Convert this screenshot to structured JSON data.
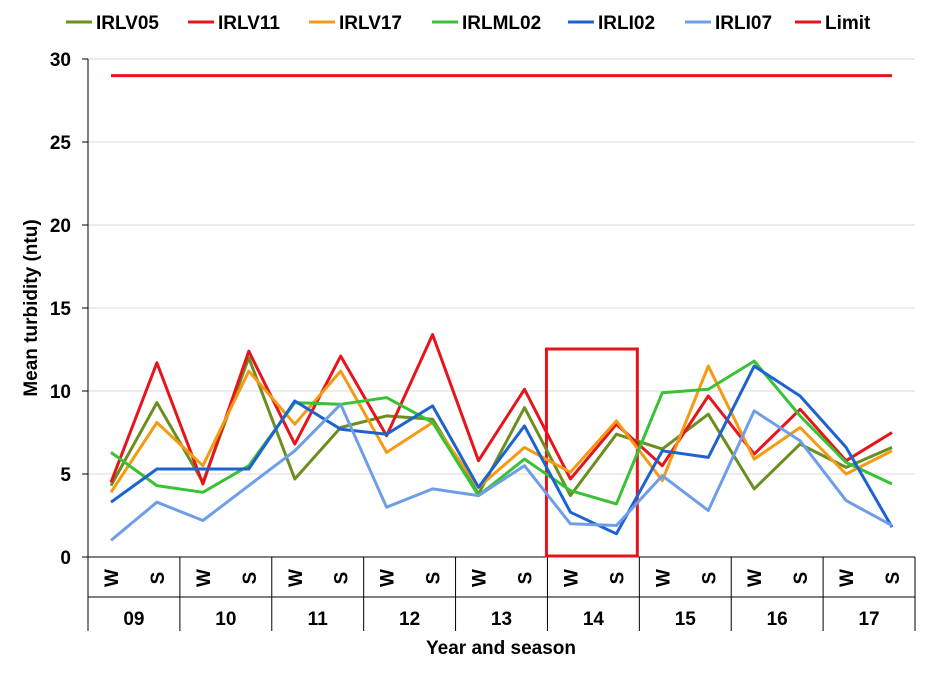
{
  "chart_data": {
    "type": "line",
    "ylabel": "Mean turbidity (ntu)",
    "xlabel": "Year and season",
    "ylim": [
      0,
      30
    ],
    "yticks": [
      "0",
      "5",
      "10",
      "15",
      "20",
      "25",
      "30"
    ],
    "years": [
      "09",
      "10",
      "11",
      "12",
      "13",
      "14",
      "15",
      "16",
      "17"
    ],
    "seasons": [
      "W",
      "S"
    ],
    "grid": "horizontal",
    "legend_position": "top",
    "highlight": {
      "year": "14",
      "color": "#e8141b"
    },
    "series": [
      {
        "name": "IRLV05",
        "color": "#6b8e1e",
        "values": [
          4.3,
          9.3,
          4.5,
          12.0,
          4.7,
          7.8,
          8.5,
          8.3,
          3.8,
          9.0,
          3.7,
          7.4,
          6.5,
          8.6,
          4.1,
          6.8,
          5.4,
          6.6
        ]
      },
      {
        "name": "IRLV11",
        "color": "#e8141b",
        "values": [
          4.5,
          11.7,
          4.4,
          12.4,
          6.8,
          12.1,
          7.3,
          13.4,
          5.8,
          10.1,
          4.7,
          8.0,
          5.5,
          9.7,
          6.2,
          8.9,
          5.8,
          7.5
        ]
      },
      {
        "name": "IRLV17",
        "color": "#f59a12",
        "values": [
          3.9,
          8.1,
          5.5,
          11.2,
          8.0,
          11.2,
          6.3,
          8.1,
          4.2,
          6.6,
          5.1,
          8.2,
          4.6,
          11.5,
          5.9,
          7.8,
          5.0,
          6.4
        ]
      },
      {
        "name": "IRLML02",
        "color": "#39c236",
        "values": [
          6.3,
          4.3,
          3.9,
          5.5,
          9.3,
          9.2,
          9.6,
          8.1,
          3.7,
          5.9,
          4.0,
          3.2,
          9.9,
          10.1,
          11.8,
          8.5,
          5.7,
          4.4
        ]
      },
      {
        "name": "IRLI02",
        "color": "#1c63d1",
        "values": [
          3.3,
          5.3,
          5.3,
          5.3,
          9.4,
          7.7,
          7.4,
          9.1,
          4.2,
          7.9,
          2.7,
          1.4,
          6.4,
          6.0,
          11.5,
          9.7,
          6.6,
          1.8
        ]
      },
      {
        "name": "IRLI07",
        "color": "#6f9ee8",
        "values": [
          1.0,
          3.3,
          2.2,
          4.3,
          6.4,
          9.2,
          3.0,
          4.1,
          3.7,
          5.5,
          2.0,
          1.9,
          4.9,
          2.8,
          8.8,
          7.0,
          3.4,
          1.9
        ]
      },
      {
        "name": "Limit",
        "color": "#e8141b",
        "values": [
          29,
          29,
          29,
          29,
          29,
          29,
          29,
          29,
          29,
          29,
          29,
          29,
          29,
          29,
          29,
          29,
          29,
          29
        ]
      }
    ]
  }
}
